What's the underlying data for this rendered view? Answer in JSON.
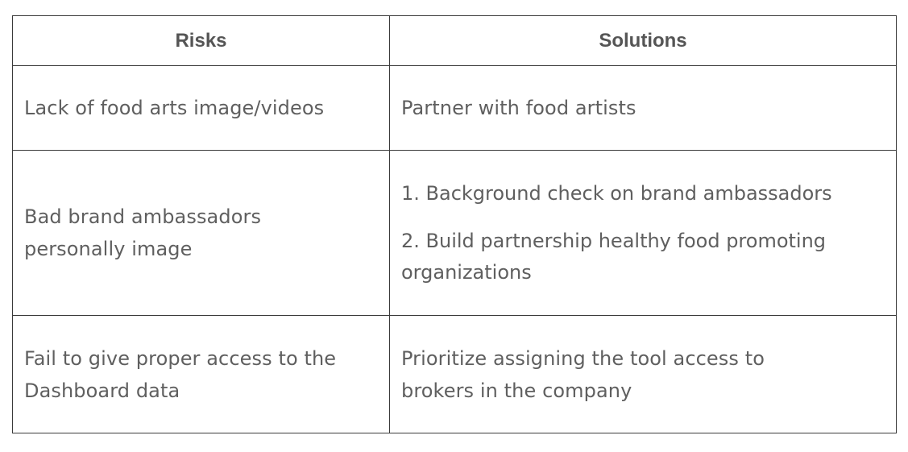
{
  "table": {
    "headers": [
      "Risks",
      "Solutions"
    ],
    "rows": [
      {
        "risk": "Lack of food arts image/videos",
        "solutions": [
          "Partner with food artists"
        ]
      },
      {
        "risk_lines": [
          "Bad brand ambassadors",
          "personally image"
        ],
        "solution_items": [
          [
            "1. Background check on brand ambassadors"
          ],
          [
            "2. Build partnership healthy food promoting",
            "organizations"
          ]
        ]
      },
      {
        "risk_lines": [
          "Fail to give proper access to the",
          "Dashboard data"
        ],
        "solution_lines": [
          "Prioritize assigning the tool access to",
          "brokers in the company"
        ]
      }
    ]
  }
}
